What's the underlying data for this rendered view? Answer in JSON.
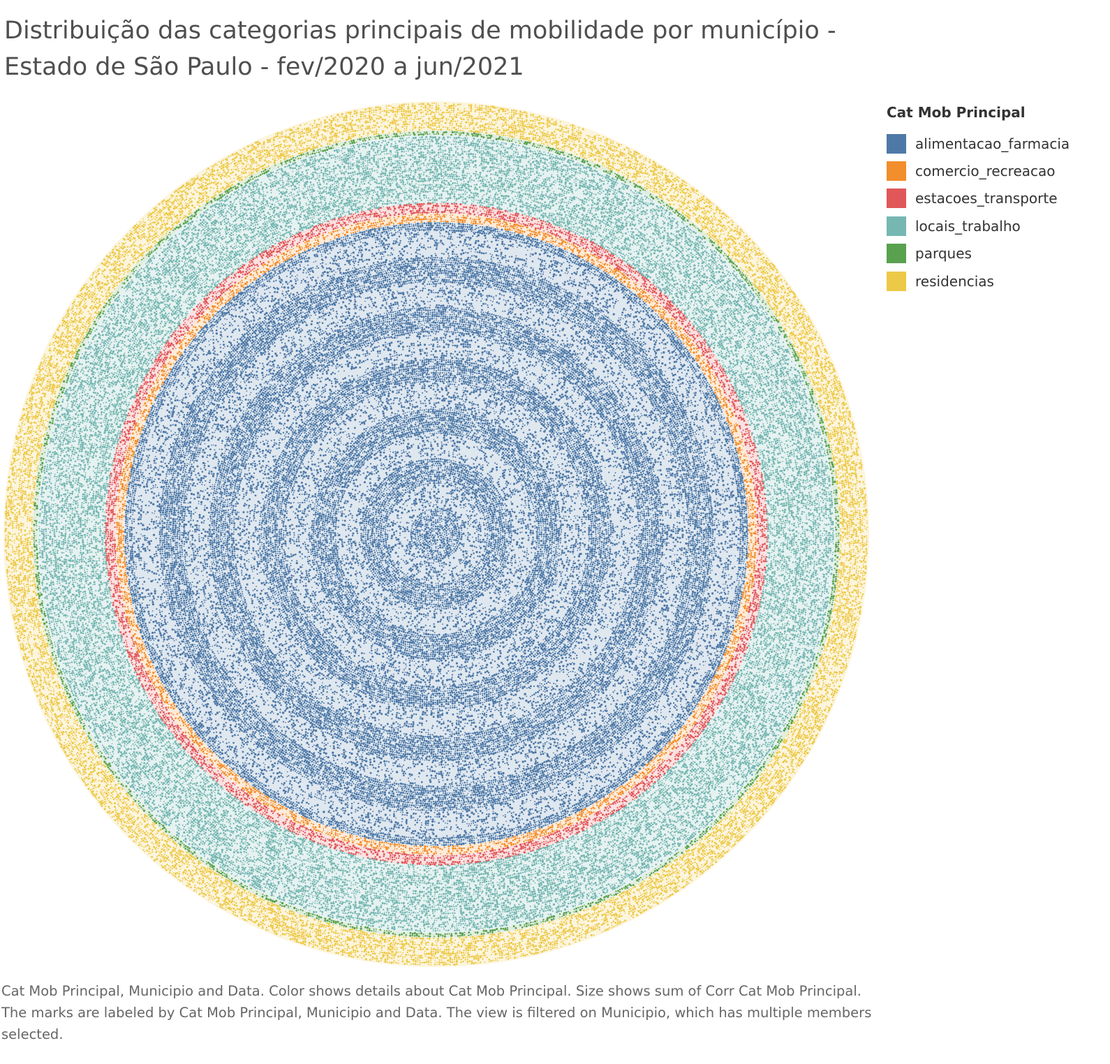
{
  "title": "Distribuição das categorias principais de mobilidade por município - Estado de São Paulo - fev/2020 a jun/2021",
  "legend": {
    "title": "Cat Mob Principal",
    "items": [
      {
        "label": "alimentacao_farmacia",
        "color": "#4e79a7"
      },
      {
        "label": "comercio_recreacao",
        "color": "#f28e2b"
      },
      {
        "label": "estacoes_transporte",
        "color": "#e15759"
      },
      {
        "label": "locais_trabalho",
        "color": "#76b7b2"
      },
      {
        "label": "parques",
        "color": "#59a14f"
      },
      {
        "label": "residencias",
        "color": "#edc948"
      }
    ]
  },
  "caption": "Cat Mob Principal, Municipio and Data.  Color shows details about Cat Mob Principal.  Size shows sum of Corr Cat Mob Principal.  The marks are labeled by Cat Mob Principal, Municipio and Data. The view is filtered on Municipio, which has multiple members selected.",
  "chart_data": {
    "type": "packed bubble",
    "legend_position": "right",
    "encoding": {
      "color": "Cat Mob Principal",
      "size": "sum of Corr Cat Mob Principal"
    },
    "series": [
      {
        "name": "alimentacao_farmacia",
        "color": "#4e79a7",
        "area_share": 0.52
      },
      {
        "name": "comercio_recreacao",
        "color": "#f28e2b",
        "area_share": 0.03
      },
      {
        "name": "estacoes_transporte",
        "color": "#e15759",
        "area_share": 0.035
      },
      {
        "name": "locais_trabalho",
        "color": "#76b7b2",
        "area_share": 0.265
      },
      {
        "name": "parques",
        "color": "#59a14f",
        "area_share": 0.02
      },
      {
        "name": "residencias",
        "color": "#edc948",
        "area_share": 0.13
      }
    ]
  }
}
